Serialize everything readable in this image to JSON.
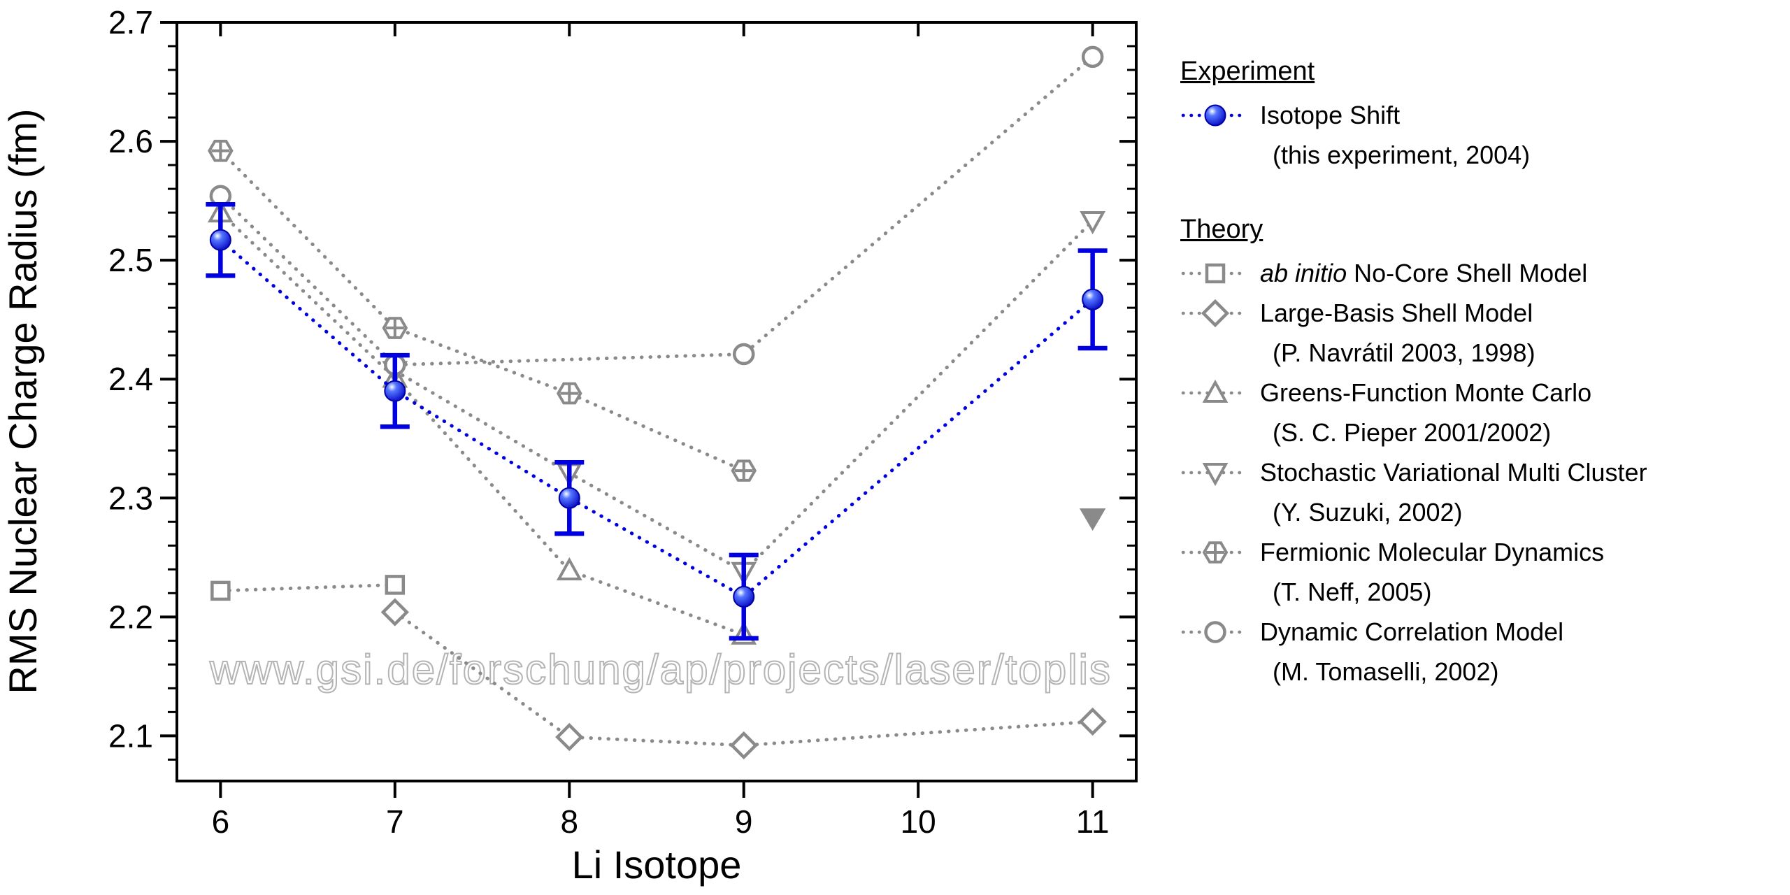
{
  "figure": {
    "watermark": "www.gsi.de/forschung/ap/projects/laser/toplis"
  },
  "axes": {
    "x": {
      "label": "Li Isotope",
      "min": 5.75,
      "max": 11.25,
      "ticks": [
        6,
        7,
        8,
        9,
        10,
        11
      ]
    },
    "y": {
      "label": "RMS Nuclear Charge Radius (fm)",
      "min": 2.062,
      "max": 2.7,
      "ticks": [
        2.1,
        2.2,
        2.3,
        2.4,
        2.5,
        2.6,
        2.7
      ],
      "minor_step": 0.02
    }
  },
  "colors": {
    "experiment": "#0000e0",
    "theory": "#8a8a8a",
    "axis": "#000000"
  },
  "legend": {
    "sections": [
      {
        "title": "Experiment",
        "items": [
          {
            "marker": "ball",
            "line1": "Isotope Shift",
            "line2": "(this experiment, 2004)"
          }
        ]
      },
      {
        "title": "Theory",
        "items": [
          {
            "marker": "square",
            "line1_em": "ab initio",
            "line1": " No-Core Shell Model"
          },
          {
            "marker": "diamond",
            "line1": "Large-Basis Shell Model",
            "line2": "(P. Navrátil 2003, 1998)"
          },
          {
            "marker": "triangle-up",
            "line1": "Greens-Function Monte Carlo",
            "line2": "(S. C. Pieper 2001/2002)"
          },
          {
            "marker": "triangle-down",
            "line1": "Stochastic Variational Multi Cluster",
            "line2": "(Y. Suzuki, 2002)"
          },
          {
            "marker": "circle-plus",
            "line1": "Fermionic Molecular Dynamics",
            "line2": "(T. Neff, 2005)"
          },
          {
            "marker": "circle",
            "line1": "Dynamic Correlation Model",
            "line2": "(M. Tomaselli, 2002)"
          }
        ]
      }
    ]
  },
  "chart_data": {
    "type": "scatter",
    "xlabel": "Li Isotope",
    "ylabel": "RMS Nuclear Charge Radius (fm)",
    "xlim": [
      5.75,
      11.25
    ],
    "ylim": [
      2.062,
      2.7
    ],
    "grid": false,
    "legend_position": "right",
    "series": [
      {
        "name": "ab initio No-Core Shell Model",
        "marker": "square",
        "color_key": "theory",
        "x": [
          6,
          7
        ],
        "y": [
          2.222,
          2.227
        ]
      },
      {
        "name": "Large-Basis Shell Model (P. Navrátil 2003, 1998)",
        "marker": "diamond",
        "color_key": "theory",
        "x": [
          7,
          8,
          9,
          11
        ],
        "y": [
          2.204,
          2.099,
          2.092,
          2.112
        ]
      },
      {
        "name": "Greens-Function Monte Carlo (S. C. Pieper 2001/2002)",
        "marker": "triangle-up",
        "color_key": "theory",
        "x": [
          6,
          7,
          8,
          9
        ],
        "y": [
          2.54,
          2.401,
          2.239,
          2.185
        ]
      },
      {
        "name": "Stochastic Variational Multi Cluster (Y. Suzuki, 2002)",
        "marker": "triangle-down",
        "color_key": "theory",
        "x": [
          7,
          8,
          9,
          11
        ],
        "y": [
          2.407,
          2.321,
          2.238,
          2.533
        ]
      },
      {
        "name": "Fermionic Molecular Dynamics (T. Neff, 2005)",
        "marker": "circle-plus",
        "color_key": "theory",
        "x": [
          6,
          7,
          8,
          9
        ],
        "y": [
          2.592,
          2.443,
          2.388,
          2.323
        ]
      },
      {
        "name": "Dynamic Correlation Model (M. Tomaselli, 2002)",
        "marker": "circle",
        "color_key": "theory",
        "x": [
          6,
          7,
          9,
          11
        ],
        "y": [
          2.554,
          2.412,
          2.421,
          2.671
        ]
      },
      {
        "name": "unlabeled filled triangle point",
        "marker": "triangle-down-filled",
        "color_key": "theory",
        "x": [
          11
        ],
        "y": [
          2.283
        ],
        "line": false
      },
      {
        "name": "Isotope Shift (this experiment, 2004)",
        "marker": "ball",
        "color_key": "experiment",
        "x": [
          6,
          7,
          8,
          9,
          11
        ],
        "y": [
          2.517,
          2.39,
          2.3,
          2.217,
          2.467
        ],
        "yerr": [
          0.03,
          0.03,
          0.03,
          0.035,
          0.041
        ]
      }
    ]
  }
}
